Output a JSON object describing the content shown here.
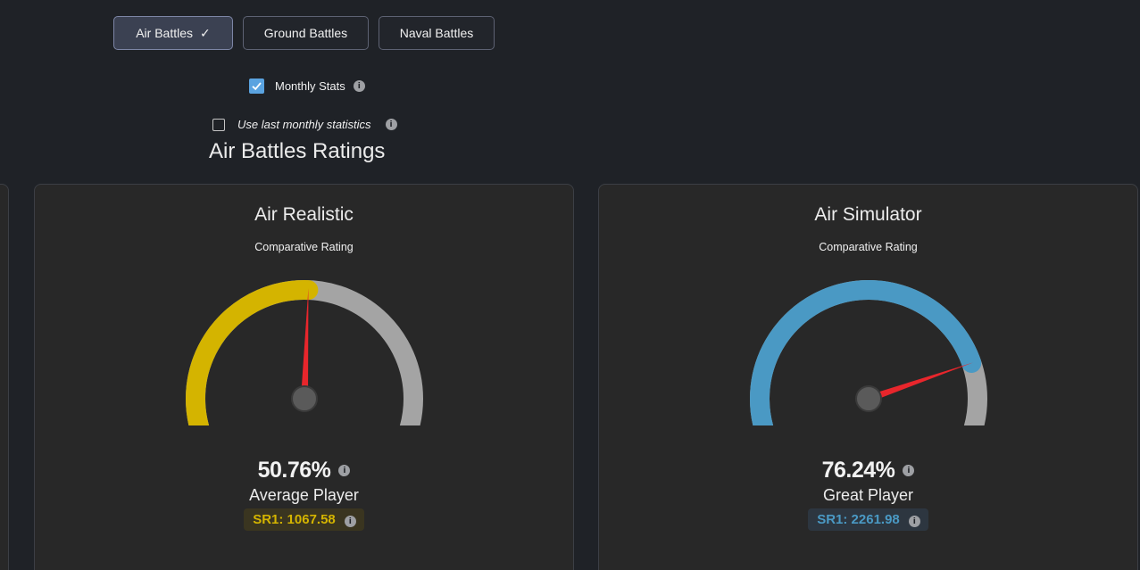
{
  "tabs": [
    {
      "label": "Air Battles",
      "active": true,
      "check": "✓"
    },
    {
      "label": "Ground Battles",
      "active": false
    },
    {
      "label": "Naval Battles",
      "active": false
    }
  ],
  "options": {
    "monthly_stats": {
      "label": "Monthly Stats",
      "checked": true
    },
    "use_last_monthly": {
      "label": "Use last monthly statistics",
      "checked": false
    }
  },
  "info_glyph": "i",
  "section_title": "Air Battles Ratings",
  "cards": [
    {
      "title": "Air Realistic",
      "subtitle": "Comparative Rating",
      "percent_text": "50.76%",
      "percent_value": 50.76,
      "rank": "Average Player",
      "sr_text": "SR1: 1067.58",
      "color": "#d4b400",
      "badge_bg": "#3a3520"
    },
    {
      "title": "Air Simulator",
      "subtitle": "Comparative Rating",
      "percent_text": "76.24%",
      "percent_value": 76.24,
      "rank": "Great Player",
      "sr_text": "SR1: 2261.98",
      "color": "#4a99c4",
      "badge_bg": "#2d3640"
    }
  ],
  "colors": {
    "gauge_track": "#a4a4a4",
    "needle": "#e8262c",
    "background": "#1f2227",
    "card_bg": "#282828"
  }
}
